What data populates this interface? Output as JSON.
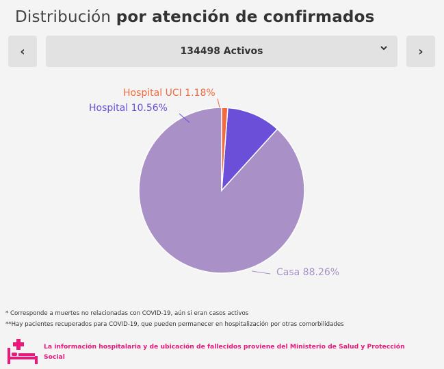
{
  "header": {
    "title_regular": "Distribución",
    "title_bold": "por atención de confirmados"
  },
  "selector": {
    "prev_icon": "chevron-left-icon",
    "prev_label": "‹",
    "value": "134498 Activos",
    "dropdown_icon": "chevron-down-icon",
    "next_icon": "chevron-right-icon",
    "next_label": "›"
  },
  "chart_data": {
    "type": "pie",
    "slices": [
      {
        "label": "Casa 88.26%",
        "name": "Casa",
        "value": 88.26,
        "color": "#a991c7"
      },
      {
        "label": "Hospital 10.56%",
        "name": "Hospital",
        "value": 10.56,
        "color": "#6b4fd8"
      },
      {
        "label": "Hospital UCI 1.18%",
        "name": "Hospital UCI",
        "value": 1.18,
        "color": "#f26a3d"
      }
    ]
  },
  "notes": [
    "* Corresponde a muertes no relacionadas con COVID-19, aún si eran casos activos",
    "**Hay pacientes recuperados para COVID-19, que pueden permanecer en hospitalización por otras comorbilidades"
  ],
  "source": {
    "icon": "hospital-bed-icon",
    "text": "La información hospitalaria y de ubicación de fallecidos proviene del Ministerio de Salud y Protección Social"
  }
}
